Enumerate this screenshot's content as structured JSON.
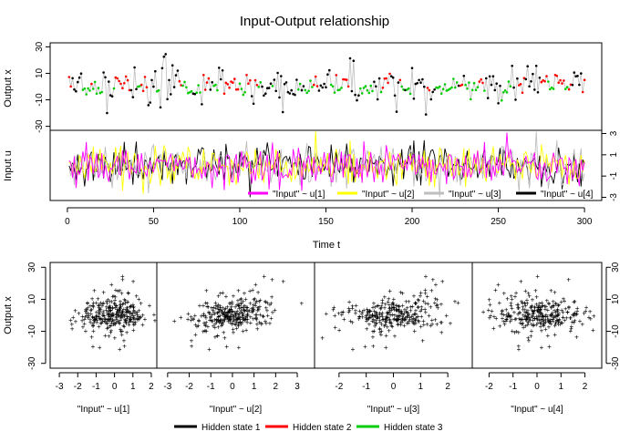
{
  "title": "Input-Output relationship",
  "top_panel": {
    "ylabel": "Output x",
    "yticks": [
      "-30",
      "-10",
      "10",
      "30"
    ],
    "ylim": [
      -33,
      33
    ],
    "xlim": [
      -10,
      310
    ]
  },
  "mid_panel": {
    "ylabel": "Input u",
    "yticks": [
      "-3",
      "-1",
      "1",
      "3"
    ],
    "ylim": [
      -3.3,
      3.3
    ],
    "xticks": [
      "0",
      "50",
      "100",
      "150",
      "200",
      "250",
      "300"
    ],
    "xlabel": "Time t",
    "legend": [
      {
        "label": "\"Input\" ~ u[1]",
        "color": "#ff00ff"
      },
      {
        "label": "\"Input\" ~ u[2]",
        "color": "#ffff00"
      },
      {
        "label": "\"Input\" ~ u[3]",
        "color": "#bebebe"
      },
      {
        "label": "\"Input\" ~ u[4]",
        "color": "#000000"
      }
    ]
  },
  "scatter_panels": [
    {
      "xlabel": "\"Input\" ~ u[1]",
      "xticks": [
        "-3",
        "-2",
        "-1",
        "0",
        "1",
        "2"
      ],
      "xlim": [
        -3.5,
        2.3
      ],
      "slopes": [
        1.5,
        3.0,
        0.0
      ]
    },
    {
      "xlabel": "\"Input\" ~ u[2]",
      "xticks": [
        "-3",
        "-2",
        "-1",
        "0",
        "1",
        "2",
        "3"
      ],
      "xlim": [
        -3.5,
        3.8
      ],
      "slopes": [
        8.0,
        4.5,
        1.0
      ]
    },
    {
      "xlabel": "\"Input\" ~ u[3]",
      "xticks": [
        "-2",
        "-1",
        "0",
        "1",
        "2"
      ],
      "xlim": [
        -2.9,
        2.9
      ],
      "slopes": [
        9.0,
        2.0,
        -3.0
      ]
    },
    {
      "xlabel": "\"Input\" ~ u[4]",
      "xticks": [
        "-2",
        "-1",
        "0",
        "1",
        "2"
      ],
      "xlim": [
        -2.7,
        2.7
      ],
      "slopes": [
        -3.0,
        1.0,
        1.0
      ]
    }
  ],
  "scatter_ylabel": "Output x",
  "scatter_yticks": [
    "-30",
    "-10",
    "10",
    "30"
  ],
  "state_legend": [
    {
      "label": "Hidden state 1",
      "color": "#000000"
    },
    {
      "label": "Hidden state 2",
      "color": "#ff0000"
    },
    {
      "label": "Hidden state 3",
      "color": "#00cd00"
    }
  ],
  "chart_data": {
    "type": "scatter",
    "n_time": 300,
    "x_range": [
      0,
      300
    ],
    "output_range": [
      -30,
      30
    ],
    "input_range": [
      -3,
      3
    ],
    "series": [
      {
        "name": "\"Input\" ~ u[1]",
        "color": "#ff00ff"
      },
      {
        "name": "\"Input\" ~ u[2]",
        "color": "#ffff00"
      },
      {
        "name": "\"Input\" ~ u[3]",
        "color": "#bebebe"
      },
      {
        "name": "\"Input\" ~ u[4]",
        "color": "#000000"
      }
    ],
    "states": [
      "Hidden state 1",
      "Hidden state 2",
      "Hidden state 3"
    ]
  }
}
